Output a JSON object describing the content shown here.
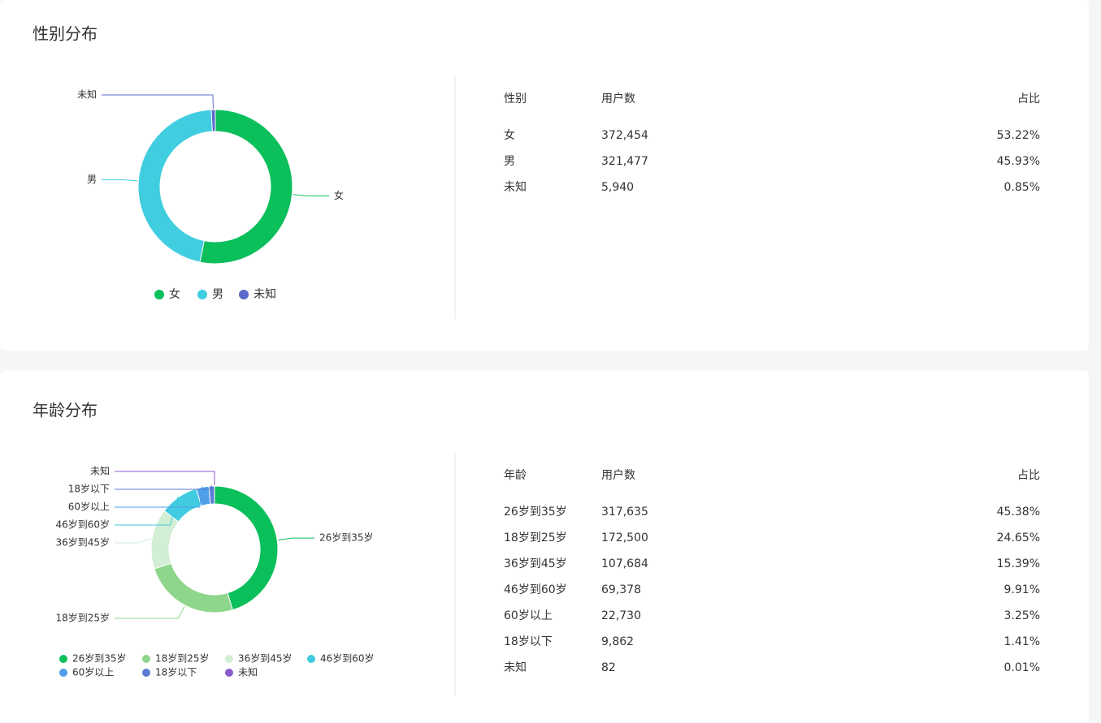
{
  "sections": [
    {
      "title": "性别分布",
      "chart": {
        "type": "pie",
        "categories": [
          "女",
          "男",
          "未知"
        ],
        "values": [
          372454,
          321477,
          5940
        ],
        "colors": [
          "#0bbf5b",
          "#40cde0",
          "#5b6bcc"
        ]
      },
      "table": {
        "headers": [
          "性别",
          "用户数",
          "占比"
        ],
        "rows": [
          [
            "女",
            "372,454",
            "53.22%"
          ],
          [
            "男",
            "321,477",
            "45.93%"
          ],
          [
            "未知",
            "5,940",
            "0.85%"
          ]
        ]
      }
    },
    {
      "title": "年龄分布",
      "chart": {
        "type": "pie",
        "categories": [
          "26岁到35岁",
          "18岁到25岁",
          "36岁到45岁",
          "46岁到60岁",
          "60岁以上",
          "18岁以下",
          "未知"
        ],
        "values": [
          317635,
          172500,
          107684,
          69378,
          22730,
          9862,
          82
        ],
        "colors": [
          "#0bbf5b",
          "#8ed68b",
          "#d2eed4",
          "#40cbe0",
          "#4f9ee8",
          "#5b7bd5",
          "#8a5bcf"
        ]
      },
      "table": {
        "headers": [
          "年龄",
          "用户数",
          "占比"
        ],
        "rows": [
          [
            "26岁到35岁",
            "317,635",
            "45.38%"
          ],
          [
            "18岁到25岁",
            "172,500",
            "24.65%"
          ],
          [
            "36岁到45岁",
            "107,684",
            "15.39%"
          ],
          [
            "46岁到60岁",
            "69,378",
            "9.91%"
          ],
          [
            "60岁以上",
            "22,730",
            "3.25%"
          ],
          [
            "18岁以下",
            "9,862",
            "1.41%"
          ],
          [
            "未知",
            "82",
            "0.01%"
          ]
        ]
      }
    }
  ]
}
